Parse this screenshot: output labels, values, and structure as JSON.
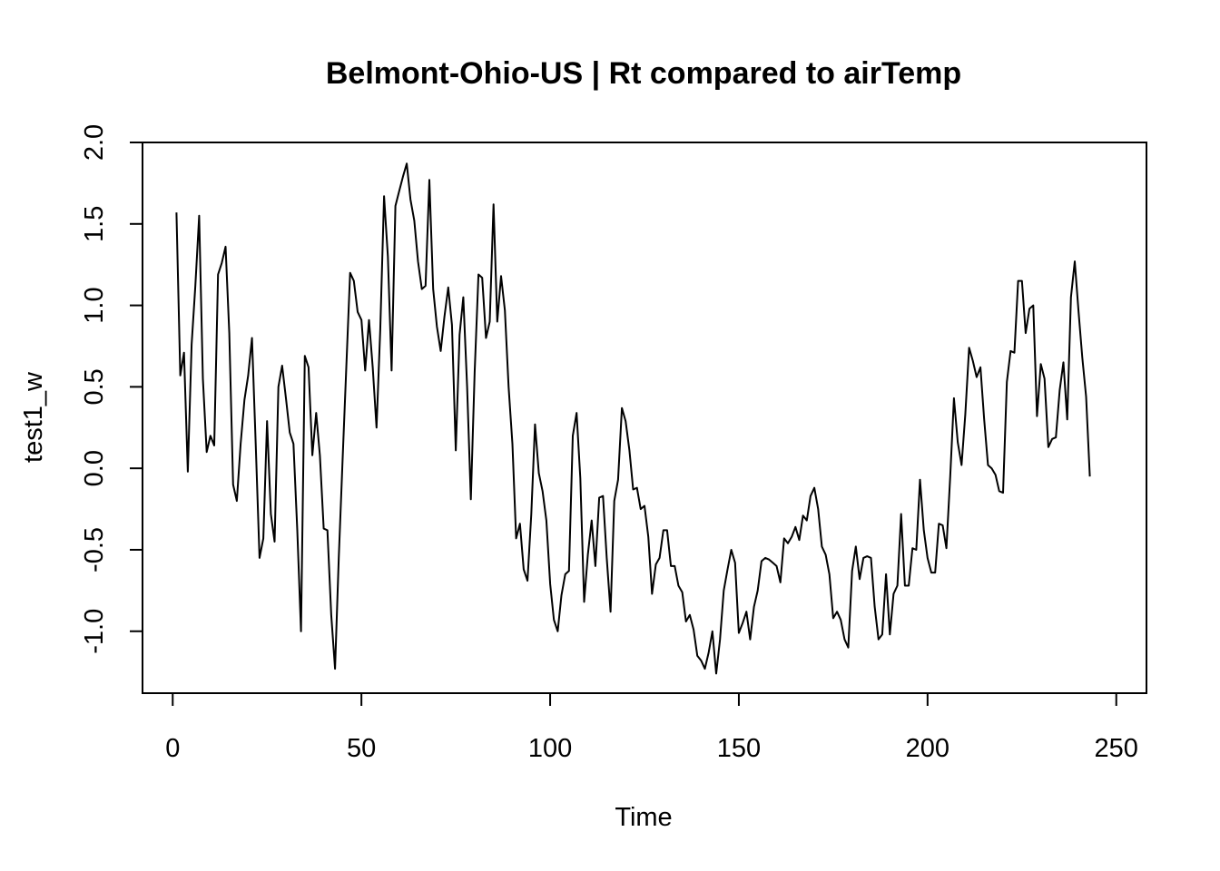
{
  "chart_data": {
    "type": "line",
    "title": "Belmont-Ohio-US | Rt compared to airTemp",
    "xlabel": "Time",
    "ylabel": "test1_w",
    "xlim": [
      -8,
      258
    ],
    "ylim": [
      -1.38,
      2.0
    ],
    "x_ticks": [
      0,
      50,
      100,
      150,
      200,
      250
    ],
    "y_ticks": [
      -1.0,
      -0.5,
      0.0,
      0.5,
      1.0,
      1.5,
      2.0
    ],
    "x_tick_labels": [
      "0",
      "50",
      "100",
      "150",
      "200",
      "250"
    ],
    "y_tick_labels": [
      "-1.0",
      "-0.5",
      "0.0",
      "0.5",
      "1.0",
      "1.5",
      "2.0"
    ],
    "grid": false,
    "line_color": "#000000",
    "series": [
      {
        "x_start": 1,
        "x_step": 1,
        "values": [
          1.57,
          0.57,
          0.71,
          -0.02,
          0.76,
          1.12,
          1.55,
          0.55,
          0.1,
          0.2,
          0.14,
          1.19,
          1.26,
          1.36,
          0.83,
          -0.1,
          -0.2,
          0.15,
          0.42,
          0.57,
          0.8,
          0.15,
          -0.55,
          -0.43,
          0.29,
          -0.28,
          -0.45,
          0.5,
          0.63,
          0.43,
          0.22,
          0.15,
          -0.38,
          -1.0,
          0.69,
          0.62,
          0.08,
          0.34,
          0.08,
          -0.37,
          -0.38,
          -0.9,
          -1.23,
          -0.55,
          0.05,
          0.62,
          1.2,
          1.15,
          0.96,
          0.91,
          0.6,
          0.91,
          0.62,
          0.25,
          0.85,
          1.67,
          1.3,
          0.6,
          1.61,
          1.7,
          1.79,
          1.87,
          1.65,
          1.52,
          1.27,
          1.1,
          1.12,
          1.77,
          1.1,
          0.87,
          0.72,
          0.93,
          1.11,
          0.88,
          0.11,
          0.82,
          1.05,
          0.5,
          -0.19,
          0.59,
          1.19,
          1.17,
          0.8,
          0.9,
          1.62,
          0.9,
          1.18,
          0.97,
          0.5,
          0.15,
          -0.43,
          -0.34,
          -0.62,
          -0.69,
          -0.28,
          0.27,
          -0.03,
          -0.14,
          -0.32,
          -0.71,
          -0.93,
          -1.0,
          -0.78,
          -0.65,
          -0.63,
          0.2,
          0.34,
          -0.06,
          -0.82,
          -0.53,
          -0.32,
          -0.6,
          -0.18,
          -0.17,
          -0.55,
          -0.88,
          -0.2,
          -0.07,
          0.37,
          0.29,
          0.11,
          -0.13,
          -0.12,
          -0.25,
          -0.23,
          -0.42,
          -0.77,
          -0.59,
          -0.55,
          -0.38,
          -0.38,
          -0.6,
          -0.6,
          -0.72,
          -0.76,
          -0.94,
          -0.9,
          -0.99,
          -1.15,
          -1.18,
          -1.23,
          -1.13,
          -1.0,
          -1.26,
          -1.05,
          -0.75,
          -0.62,
          -0.5,
          -0.58,
          -1.01,
          -0.95,
          -0.88,
          -1.05,
          -0.85,
          -0.75,
          -0.57,
          -0.55,
          -0.56,
          -0.58,
          -0.6,
          -0.7,
          -0.43,
          -0.46,
          -0.42,
          -0.36,
          -0.44,
          -0.29,
          -0.32,
          -0.17,
          -0.12,
          -0.25,
          -0.48,
          -0.53,
          -0.65,
          -0.92,
          -0.88,
          -0.93,
          -1.05,
          -1.1,
          -0.63,
          -0.48,
          -0.68,
          -0.55,
          -0.54,
          -0.55,
          -0.85,
          -1.05,
          -1.02,
          -0.65,
          -1.02,
          -0.77,
          -0.72,
          -0.28,
          -0.72,
          -0.72,
          -0.49,
          -0.5,
          -0.07,
          -0.38,
          -0.55,
          -0.64,
          -0.64,
          -0.34,
          -0.35,
          -0.49,
          -0.05,
          0.43,
          0.16,
          0.02,
          0.33,
          0.74,
          0.66,
          0.56,
          0.62,
          0.3,
          0.02,
          0.0,
          -0.04,
          -0.14,
          -0.15,
          0.53,
          0.72,
          0.71,
          1.15,
          1.15,
          0.83,
          0.98,
          1.0,
          0.32,
          0.64,
          0.55,
          0.13,
          0.18,
          0.19,
          0.48,
          0.65,
          0.3,
          1.05,
          1.27,
          0.96,
          0.68,
          0.44,
          -0.05
        ]
      }
    ]
  }
}
